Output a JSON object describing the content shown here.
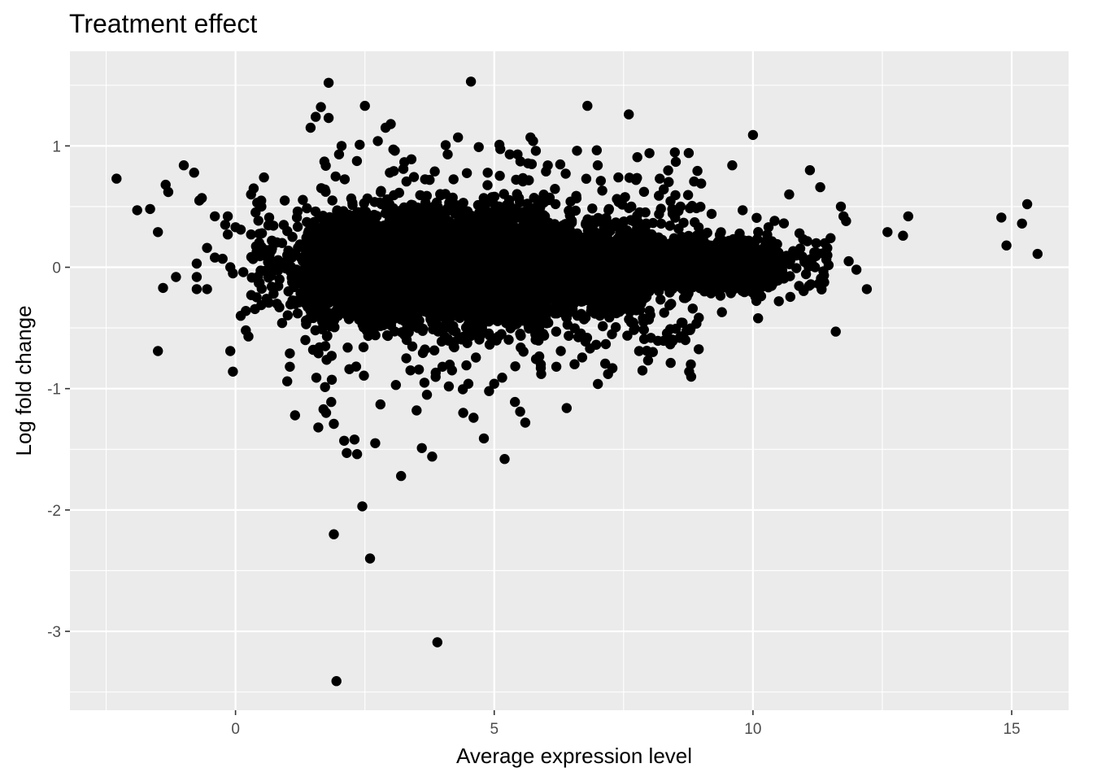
{
  "chart_data": {
    "type": "scatter",
    "title": "Treatment effect",
    "xlabel": "Average expression level",
    "ylabel": "Log fold change",
    "xlim": [
      -3.2,
      16.1
    ],
    "ylim": [
      -3.65,
      1.78
    ],
    "x_ticks": [
      0,
      5,
      10,
      15
    ],
    "y_ticks": [
      1,
      0,
      -1,
      -2,
      -3
    ],
    "x_tick_labels": [
      "0",
      "5",
      "10",
      "15"
    ],
    "y_tick_labels": [
      "1",
      "0",
      "-1",
      "-2",
      "-3"
    ],
    "grid": true,
    "background_color": "#ebebeb",
    "grid_color": "#ffffff",
    "point_color": "#000000",
    "points": [
      [
        -2.3,
        0.73
      ],
      [
        -1.9,
        0.47
      ],
      [
        -1.65,
        0.48
      ],
      [
        -1.5,
        0.29
      ],
      [
        -1.5,
        -0.69
      ],
      [
        -1.4,
        -0.17
      ],
      [
        -1.35,
        0.68
      ],
      [
        -1.3,
        0.62
      ],
      [
        -1.15,
        -0.08
      ],
      [
        -1.0,
        0.84
      ],
      [
        -0.8,
        0.78
      ],
      [
        -0.75,
        0.03
      ],
      [
        -0.75,
        -0.08
      ],
      [
        -0.75,
        -0.18
      ],
      [
        -0.7,
        0.55
      ],
      [
        -0.65,
        0.57
      ],
      [
        -0.55,
        -0.18
      ],
      [
        -0.55,
        0.16
      ],
      [
        -0.4,
        0.42
      ],
      [
        -0.4,
        0.08
      ],
      [
        -0.25,
        0.07
      ],
      [
        -0.2,
        0.35
      ],
      [
        -0.15,
        0.27
      ],
      [
        -0.15,
        0.42
      ],
      [
        -0.1,
        0.0
      ],
      [
        -0.1,
        -0.69
      ],
      [
        -0.05,
        -0.05
      ],
      [
        -0.05,
        -0.86
      ],
      [
        0.0,
        0.33
      ],
      [
        0.1,
        0.31
      ],
      [
        0.1,
        -0.4
      ],
      [
        0.15,
        -0.04
      ],
      [
        0.2,
        -0.52
      ],
      [
        0.2,
        -0.36
      ],
      [
        0.25,
        -0.57
      ],
      [
        0.3,
        0.27
      ],
      [
        0.3,
        0.6
      ],
      [
        0.35,
        0.65
      ],
      [
        0.45,
        -0.13
      ],
      [
        0.5,
        0.5
      ],
      [
        0.5,
        0.17
      ],
      [
        0.55,
        0.74
      ],
      [
        0.6,
        -0.26
      ],
      [
        0.65,
        0.41
      ],
      [
        0.7,
        -0.16
      ],
      [
        0.75,
        0.02
      ],
      [
        0.8,
        -0.3
      ],
      [
        0.85,
        -0.1
      ],
      [
        0.9,
        0.2
      ],
      [
        0.9,
        -0.46
      ],
      [
        0.95,
        0.55
      ],
      [
        1.0,
        -0.94
      ],
      [
        1.0,
        0.1
      ],
      [
        1.05,
        -0.71
      ],
      [
        1.05,
        -0.82
      ],
      [
        1.1,
        0.25
      ],
      [
        1.15,
        -1.22
      ],
      [
        1.2,
        -0.38
      ],
      [
        1.2,
        0.46
      ],
      [
        1.3,
        0.05
      ],
      [
        1.35,
        -0.6
      ],
      [
        1.4,
        0.28
      ],
      [
        1.45,
        1.15
      ],
      [
        1.5,
        -0.68
      ],
      [
        1.55,
        1.24
      ],
      [
        1.6,
        -1.32
      ],
      [
        1.65,
        1.32
      ],
      [
        1.7,
        -1.17
      ],
      [
        1.75,
        -1.2
      ],
      [
        1.8,
        1.23
      ],
      [
        1.8,
        1.52
      ],
      [
        1.85,
        -1.11
      ],
      [
        1.9,
        -2.2
      ],
      [
        1.9,
        -1.29
      ],
      [
        1.95,
        -3.41
      ],
      [
        2.0,
        0.93
      ],
      [
        2.05,
        1.0
      ],
      [
        2.1,
        -1.43
      ],
      [
        2.15,
        -1.53
      ],
      [
        2.2,
        -0.84
      ],
      [
        2.3,
        -1.42
      ],
      [
        2.35,
        -1.54
      ],
      [
        2.4,
        1.01
      ],
      [
        2.45,
        -1.97
      ],
      [
        2.5,
        1.33
      ],
      [
        2.6,
        -2.4
      ],
      [
        2.7,
        -1.45
      ],
      [
        2.75,
        1.04
      ],
      [
        2.8,
        -1.13
      ],
      [
        2.9,
        1.15
      ],
      [
        3.0,
        1.18
      ],
      [
        3.05,
        0.97
      ],
      [
        3.1,
        -0.97
      ],
      [
        3.2,
        -1.72
      ],
      [
        3.3,
        -0.75
      ],
      [
        3.4,
        0.89
      ],
      [
        3.5,
        -1.18
      ],
      [
        3.6,
        -1.49
      ],
      [
        3.7,
        -1.05
      ],
      [
        3.8,
        -1.56
      ],
      [
        3.85,
        0.79
      ],
      [
        3.9,
        -3.09
      ],
      [
        4.0,
        -0.82
      ],
      [
        4.1,
        0.93
      ],
      [
        4.3,
        1.07
      ],
      [
        4.4,
        -1.2
      ],
      [
        4.5,
        -0.96
      ],
      [
        4.55,
        1.53
      ],
      [
        4.6,
        -1.24
      ],
      [
        4.7,
        0.99
      ],
      [
        4.8,
        -1.41
      ],
      [
        4.9,
        -1.02
      ],
      [
        5.0,
        -0.96
      ],
      [
        5.1,
        1.01
      ],
      [
        5.2,
        -1.58
      ],
      [
        5.3,
        0.93
      ],
      [
        5.4,
        -1.11
      ],
      [
        5.45,
        0.93
      ],
      [
        5.5,
        -1.19
      ],
      [
        5.6,
        -1.28
      ],
      [
        5.7,
        1.07
      ],
      [
        5.75,
        1.04
      ],
      [
        5.9,
        -0.8
      ],
      [
        6.0,
        0.79
      ],
      [
        6.2,
        -0.82
      ],
      [
        6.4,
        -1.16
      ],
      [
        6.6,
        0.96
      ],
      [
        6.8,
        1.33
      ],
      [
        7.0,
        0.84
      ],
      [
        7.2,
        -0.88
      ],
      [
        7.4,
        0.74
      ],
      [
        7.6,
        1.26
      ],
      [
        7.8,
        -0.69
      ],
      [
        8.0,
        0.94
      ],
      [
        8.2,
        0.73
      ],
      [
        8.4,
        -0.51
      ],
      [
        8.6,
        0.5
      ],
      [
        8.8,
        -0.8
      ],
      [
        9.0,
        0.69
      ],
      [
        9.2,
        0.44
      ],
      [
        9.4,
        -0.37
      ],
      [
        9.6,
        0.84
      ],
      [
        9.8,
        0.47
      ],
      [
        10.0,
        1.09
      ],
      [
        10.1,
        -0.42
      ],
      [
        10.3,
        0.33
      ],
      [
        10.5,
        -0.28
      ],
      [
        10.7,
        0.6
      ],
      [
        10.9,
        0.28
      ],
      [
        11.1,
        0.8
      ],
      [
        11.2,
        0.0
      ],
      [
        11.3,
        0.66
      ],
      [
        11.5,
        0.24
      ],
      [
        11.6,
        -0.53
      ],
      [
        11.7,
        0.5
      ],
      [
        11.75,
        0.42
      ],
      [
        11.8,
        0.38
      ],
      [
        11.85,
        0.05
      ],
      [
        12.0,
        -0.02
      ],
      [
        12.2,
        -0.18
      ],
      [
        12.6,
        0.29
      ],
      [
        12.9,
        0.26
      ],
      [
        13.0,
        0.42
      ],
      [
        14.8,
        0.41
      ],
      [
        14.9,
        0.18
      ],
      [
        15.2,
        0.36
      ],
      [
        15.3,
        0.52
      ],
      [
        15.5,
        0.11
      ]
    ],
    "dense_bands": [
      {
        "x_range": [
          1.35,
          2.5
        ],
        "y_center": 0.02,
        "y_half_width": 0.38,
        "count": 700
      },
      {
        "x_range": [
          2.5,
          6.0
        ],
        "y_center": 0.0,
        "y_half_width": 0.45,
        "count": 2600
      },
      {
        "x_range": [
          6.0,
          8.0
        ],
        "y_center": 0.0,
        "y_half_width": 0.32,
        "count": 1100
      },
      {
        "x_range": [
          8.0,
          10.5
        ],
        "y_center": 0.02,
        "y_half_width": 0.2,
        "count": 650
      },
      {
        "x_range": [
          1.5,
          9.0
        ],
        "y_center": 0.0,
        "y_half_width": 0.75,
        "count": 900
      },
      {
        "x_range": [
          0.3,
          1.5
        ],
        "y_center": 0.05,
        "y_half_width": 0.4,
        "count": 90
      },
      {
        "x_range": [
          10.0,
          11.5
        ],
        "y_center": 0.05,
        "y_half_width": 0.28,
        "count": 70
      }
    ]
  }
}
